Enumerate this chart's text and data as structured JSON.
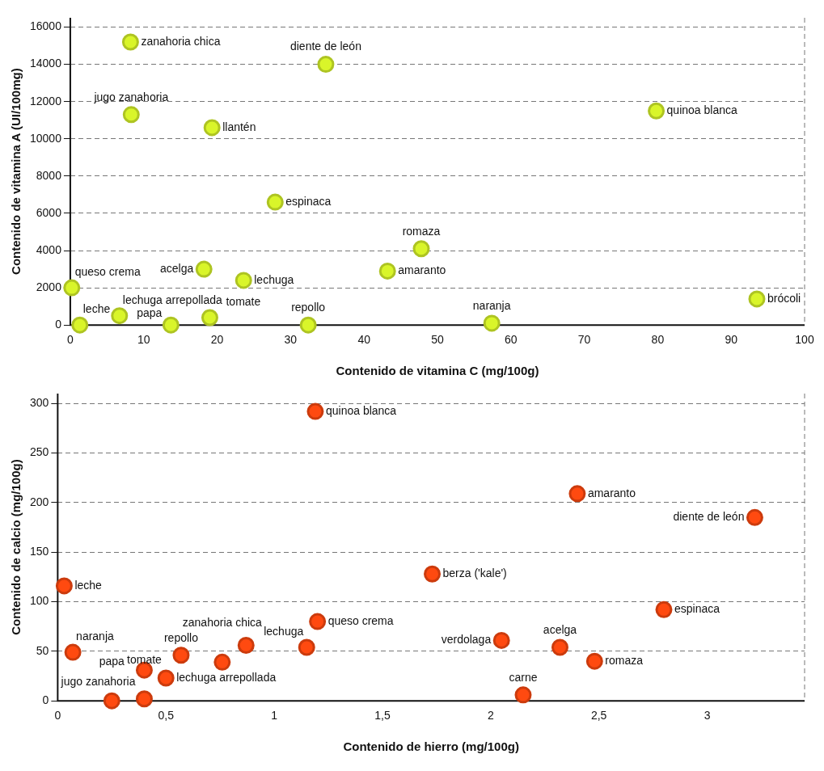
{
  "chart_data": [
    {
      "type": "scatter",
      "xlabel": "Contenido de vitamina C (mg/100g)",
      "ylabel": "Contenido de vitamina A (UI/100mg)",
      "xlim": [
        0,
        100
      ],
      "ylim": [
        0,
        16500
      ],
      "xticks": [
        0,
        10,
        20,
        30,
        40,
        50,
        60,
        70,
        80,
        90,
        100
      ],
      "yticks": [
        0,
        2000,
        4000,
        6000,
        8000,
        10000,
        12000,
        14000,
        16000
      ],
      "grid": "y",
      "legend": false,
      "marker": "circle",
      "series": [
        {
          "color": "#d9f52a",
          "x": [
            8.2,
            34.8,
            8.3,
            19.3,
            79.8,
            27.9,
            47.8,
            18.2,
            43.2,
            23.6,
            0.2,
            93.5,
            1.3,
            6.7,
            13.7,
            19,
            32.4,
            57.4
          ],
          "values": [
            15200,
            14000,
            11300,
            10600,
            11500,
            6600,
            4100,
            3000,
            2900,
            2400,
            2000,
            1400,
            0,
            500,
            0,
            400,
            0,
            100
          ]
        }
      ],
      "annotations": [
        {
          "text": "zanahoria chica",
          "x": 8.2,
          "y": 15200
        },
        {
          "text": "diente de león",
          "x": 34.8,
          "y": 14000
        },
        {
          "text": "jugo zanahoria",
          "x": 8.3,
          "y": 11300
        },
        {
          "text": "llantén",
          "x": 19.3,
          "y": 10600
        },
        {
          "text": "quinoa blanca",
          "x": 79.8,
          "y": 11500
        },
        {
          "text": "espinaca",
          "x": 27.9,
          "y": 6600
        },
        {
          "text": "romaza",
          "x": 47.8,
          "y": 4100
        },
        {
          "text": "acelga",
          "x": 18.2,
          "y": 3000
        },
        {
          "text": "amaranto",
          "x": 43.2,
          "y": 2900
        },
        {
          "text": "lechuga",
          "x": 23.6,
          "y": 2400
        },
        {
          "text": "queso crema",
          "x": 0.2,
          "y": 2000
        },
        {
          "text": "brócoli",
          "x": 93.5,
          "y": 1400
        },
        {
          "text": "leche",
          "x": 1.3,
          "y": 0
        },
        {
          "text": "lechuga arrepollada",
          "x": 6.7,
          "y": 500
        },
        {
          "text": "papa",
          "x": 13.7,
          "y": 0
        },
        {
          "text": "tomate",
          "x": 19,
          "y": 400
        },
        {
          "text": "repollo",
          "x": 32.4,
          "y": 0
        },
        {
          "text": "naranja",
          "x": 57.4,
          "y": 100
        }
      ]
    },
    {
      "type": "scatter",
      "xlabel": "Contenido de hierro (mg/100g)",
      "ylabel": "Contenido de calcio (mg/100g)",
      "xlim": [
        0,
        3.45
      ],
      "ylim": [
        0,
        310
      ],
      "xticks": [
        0,
        {
          "value": 0.5,
          "label": "0,5"
        },
        1,
        {
          "value": 1.5,
          "label": "1,5"
        },
        2,
        {
          "value": 2.5,
          "label": "2,5"
        },
        3
      ],
      "yticks": [
        0,
        50,
        100,
        150,
        200,
        250,
        300
      ],
      "grid": "y",
      "legend": false,
      "marker": "circle",
      "series": [
        {
          "color": "#ff4a10",
          "x": [
            1.19,
            2.4,
            3.22,
            1.73,
            0.03,
            2.8,
            1.2,
            2.05,
            0.07,
            2.32,
            0.57,
            0.76,
            0.87,
            1.15,
            2.48,
            0.4,
            0.5,
            0.25,
            0.4,
            2.15
          ],
          "values": [
            292,
            209,
            185,
            128,
            116,
            92,
            80,
            61,
            49,
            54,
            46,
            39,
            56,
            54,
            40,
            31,
            23,
            0,
            2,
            6
          ]
        }
      ],
      "annotations": [
        {
          "text": "quinoa blanca",
          "x": 1.19,
          "y": 292
        },
        {
          "text": "amaranto",
          "x": 2.4,
          "y": 209
        },
        {
          "text": "diente de león",
          "x": 3.22,
          "y": 185
        },
        {
          "text": "berza ('kale')",
          "x": 1.73,
          "y": 128
        },
        {
          "text": "leche",
          "x": 0.03,
          "y": 116
        },
        {
          "text": "espinaca",
          "x": 2.8,
          "y": 92
        },
        {
          "text": "queso crema",
          "x": 1.2,
          "y": 80
        },
        {
          "text": "verdolaga",
          "x": 2.05,
          "y": 61
        },
        {
          "text": "naranja",
          "x": 0.07,
          "y": 49
        },
        {
          "text": "acelga",
          "x": 2.32,
          "y": 54
        },
        {
          "text": "repollo",
          "x": 0.57,
          "y": 46
        },
        {
          "text": "zanahoria chica",
          "x": 0.76,
          "y": 39
        },
        {
          "text": "lechuga",
          "x": 1.15,
          "y": 54
        },
        {
          "text": "romaza",
          "x": 2.48,
          "y": 40
        },
        {
          "text": "jugo zanahoria",
          "x": 0.4,
          "y": 31
        },
        {
          "text": "lechuga arrepollada",
          "x": 0.5,
          "y": 23
        },
        {
          "text": "papa",
          "x": 0.25,
          "y": 0
        },
        {
          "text": "tomate",
          "x": 0.4,
          "y": 2
        },
        {
          "text": "carne",
          "x": 2.15,
          "y": 6
        }
      ]
    }
  ]
}
